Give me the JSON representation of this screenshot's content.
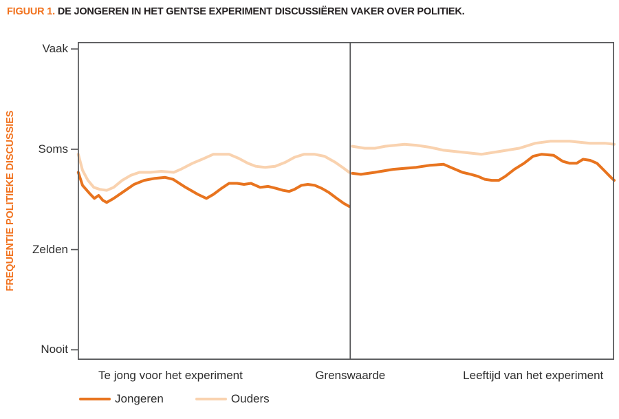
{
  "figure": {
    "label": "FIGUUR 1.",
    "title": "DE JONGEREN IN HET GENTSE EXPERIMENT DISCUSSIËREN VAKER OVER POLITIEK."
  },
  "colors": {
    "accent_orange": "#F1721E",
    "jongeren_line": "#E8741F",
    "ouders_line": "#F9D2AF",
    "axis_gray": "#58595B",
    "text_dark": "#2D2D2D"
  },
  "chart_data": {
    "type": "line",
    "title": "FIGUUR 1. DE JONGEREN IN HET GENTSE EXPERIMENT DISCUSSIËREN VAKER OVER POLITIEK.",
    "xlabel": "",
    "ylabel": "FREQUENTIE POLITIEKE DISCUSSIES",
    "grid": false,
    "legend_position": "bottom-left",
    "ylim": [
      0.9,
      4.07
    ],
    "y_ticks": [
      {
        "label": "Vaak",
        "value": 4
      },
      {
        "label": "Soms",
        "value": 3
      },
      {
        "label": "Zelden",
        "value": 2
      },
      {
        "label": "Nooit",
        "value": 1
      }
    ],
    "x_unit": "percent_of_plot_width",
    "divider_pct": 50.8,
    "x_labels": [
      {
        "label": "Te jong voor het experiment",
        "center_pct": 17.3
      },
      {
        "label": "Grenswaarde",
        "center_pct": 50.8
      },
      {
        "label": "Leeftijd van het experiment",
        "center_pct": 84.9
      }
    ],
    "series": [
      {
        "name": "Jongeren",
        "color": "#E8741F",
        "stroke_width": 4,
        "segments": [
          [
            [
              0.1,
              2.77
            ],
            [
              0.9,
              2.64
            ],
            [
              2.2,
              2.56
            ],
            [
              3.1,
              2.51
            ],
            [
              3.9,
              2.54
            ],
            [
              4.7,
              2.49
            ],
            [
              5.4,
              2.47
            ],
            [
              6.7,
              2.51
            ],
            [
              8.6,
              2.58
            ],
            [
              10.5,
              2.65
            ],
            [
              12.4,
              2.69
            ],
            [
              14.4,
              2.71
            ],
            [
              16.3,
              2.72
            ],
            [
              17.8,
              2.7
            ],
            [
              20.1,
              2.62
            ],
            [
              22.4,
              2.55
            ],
            [
              24.0,
              2.51
            ],
            [
              25.3,
              2.55
            ],
            [
              26.8,
              2.61
            ],
            [
              28.2,
              2.66
            ],
            [
              29.7,
              2.66
            ],
            [
              31.0,
              2.65
            ],
            [
              32.3,
              2.66
            ],
            [
              34.0,
              2.62
            ],
            [
              35.5,
              2.63
            ],
            [
              37.0,
              2.61
            ],
            [
              38.3,
              2.59
            ],
            [
              39.4,
              2.58
            ],
            [
              40.4,
              2.6
            ],
            [
              41.7,
              2.64
            ],
            [
              42.9,
              2.65
            ],
            [
              44.2,
              2.64
            ],
            [
              45.5,
              2.61
            ],
            [
              46.8,
              2.57
            ],
            [
              48.3,
              2.51
            ],
            [
              49.6,
              2.46
            ],
            [
              50.6,
              2.43
            ]
          ],
          [
            [
              51.2,
              2.76
            ],
            [
              52.8,
              2.75
            ],
            [
              55.4,
              2.77
            ],
            [
              58.8,
              2.8
            ],
            [
              63.1,
              2.82
            ],
            [
              65.6,
              2.84
            ],
            [
              68.2,
              2.85
            ],
            [
              69.5,
              2.82
            ],
            [
              71.7,
              2.77
            ],
            [
              73.3,
              2.75
            ],
            [
              74.6,
              2.73
            ],
            [
              75.9,
              2.7
            ],
            [
              77.2,
              2.69
            ],
            [
              78.5,
              2.69
            ],
            [
              79.7,
              2.73
            ],
            [
              81.4,
              2.8
            ],
            [
              83.2,
              2.86
            ],
            [
              84.9,
              2.93
            ],
            [
              86.5,
              2.95
            ],
            [
              88.7,
              2.94
            ],
            [
              90.4,
              2.88
            ],
            [
              91.7,
              2.86
            ],
            [
              93.0,
              2.86
            ],
            [
              94.2,
              2.9
            ],
            [
              95.5,
              2.89
            ],
            [
              96.8,
              2.86
            ],
            [
              98.1,
              2.79
            ],
            [
              99.4,
              2.72
            ],
            [
              100,
              2.69
            ]
          ]
        ]
      },
      {
        "name": "Ouders",
        "color": "#F9D2AF",
        "stroke_width": 4,
        "segments": [
          [
            [
              0.1,
              2.95
            ],
            [
              0.9,
              2.79
            ],
            [
              1.9,
              2.69
            ],
            [
              3.0,
              2.62
            ],
            [
              4.1,
              2.6
            ],
            [
              5.4,
              2.59
            ],
            [
              6.7,
              2.62
            ],
            [
              8.3,
              2.69
            ],
            [
              9.9,
              2.74
            ],
            [
              11.5,
              2.77
            ],
            [
              13.5,
              2.77
            ],
            [
              15.6,
              2.78
            ],
            [
              17.9,
              2.77
            ],
            [
              19.2,
              2.8
            ],
            [
              21.4,
              2.86
            ],
            [
              23.6,
              2.91
            ],
            [
              25.3,
              2.95
            ],
            [
              26.8,
              2.95
            ],
            [
              28.2,
              2.95
            ],
            [
              30.0,
              2.91
            ],
            [
              31.7,
              2.86
            ],
            [
              33.2,
              2.83
            ],
            [
              34.9,
              2.82
            ],
            [
              36.8,
              2.83
            ],
            [
              38.7,
              2.87
            ],
            [
              40.4,
              2.92
            ],
            [
              42.2,
              2.95
            ],
            [
              44.1,
              2.95
            ],
            [
              46.0,
              2.93
            ],
            [
              48.0,
              2.87
            ],
            [
              49.6,
              2.81
            ],
            [
              50.6,
              2.77
            ]
          ],
          [
            [
              51.2,
              3.03
            ],
            [
              53.5,
              3.01
            ],
            [
              55.4,
              3.01
            ],
            [
              57.3,
              3.03
            ],
            [
              60.9,
              3.05
            ],
            [
              63.1,
              3.04
            ],
            [
              65.6,
              3.02
            ],
            [
              68.2,
              2.99
            ],
            [
              71.7,
              2.97
            ],
            [
              75.3,
              2.95
            ],
            [
              78.8,
              2.98
            ],
            [
              82.3,
              3.01
            ],
            [
              85.3,
              3.06
            ],
            [
              88.1,
              3.08
            ],
            [
              91.7,
              3.08
            ],
            [
              95.5,
              3.06
            ],
            [
              98.3,
              3.06
            ],
            [
              100,
              3.05
            ]
          ]
        ]
      }
    ]
  }
}
